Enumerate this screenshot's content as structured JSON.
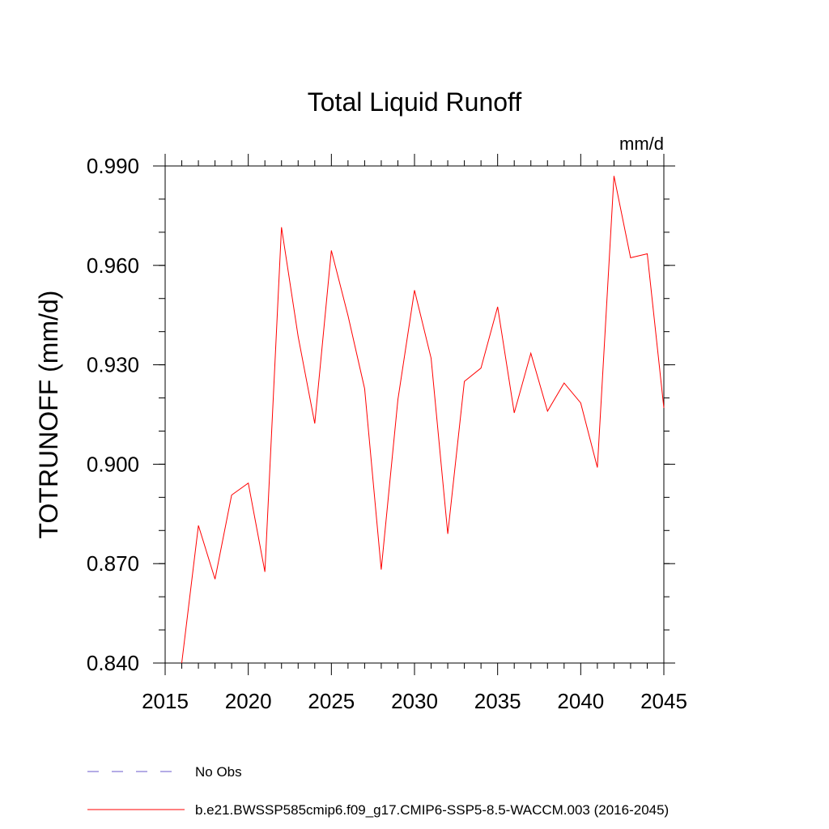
{
  "chart_data": {
    "type": "line",
    "title": "Total Liquid Runoff",
    "units_label": "mm/d",
    "ylabel": "TOTRUNOFF  (mm/d)",
    "xlabel": "",
    "xlim": [
      2015,
      2045
    ],
    "ylim": [
      0.84,
      0.99
    ],
    "x_ticks": [
      2015,
      2020,
      2025,
      2030,
      2035,
      2040,
      2045
    ],
    "y_ticks": [
      0.84,
      0.87,
      0.9,
      0.93,
      0.96,
      0.99
    ],
    "x_tick_labels": [
      "2015",
      "2020",
      "2025",
      "2030",
      "2035",
      "2040",
      "2045"
    ],
    "y_tick_labels": [
      "0.840",
      "0.870",
      "0.900",
      "0.930",
      "0.960",
      "0.990"
    ],
    "y_minor_step": 0.01,
    "x_minor_step": 1,
    "series": [
      {
        "name": "b.e21.BWSSP585cmip6.f09_g17.CMIP6-SSP5-8.5-WACCM.003 (2016-2045)",
        "color": "#ff0000",
        "x": [
          2016,
          2017,
          2018,
          2019,
          2020,
          2021,
          2022,
          2023,
          2024,
          2025,
          2026,
          2027,
          2028,
          2029,
          2030,
          2031,
          2032,
          2033,
          2034,
          2035,
          2036,
          2037,
          2038,
          2039,
          2040,
          2041,
          2042,
          2043,
          2044,
          2045
        ],
        "values": [
          0.84,
          0.8815,
          0.8653,
          0.8907,
          0.8943,
          0.8675,
          0.9715,
          0.9385,
          0.9123,
          0.9645,
          0.9448,
          0.9228,
          0.8682,
          0.9195,
          0.9525,
          0.932,
          0.879,
          0.925,
          0.929,
          0.9475,
          0.9155,
          0.9335,
          0.916,
          0.9245,
          0.9185,
          0.899,
          0.987,
          0.9623,
          0.9635,
          0.917
        ]
      }
    ],
    "legend": [
      {
        "label": "No Obs",
        "color": "#6a5acd",
        "style": "dashed"
      },
      {
        "label": "b.e21.BWSSP585cmip6.f09_g17.CMIP6-SSP5-8.5-WACCM.003 (2016-2045)",
        "color": "#ff0000",
        "style": "solid"
      }
    ],
    "legend_position": "bottom-left",
    "grid": false
  }
}
